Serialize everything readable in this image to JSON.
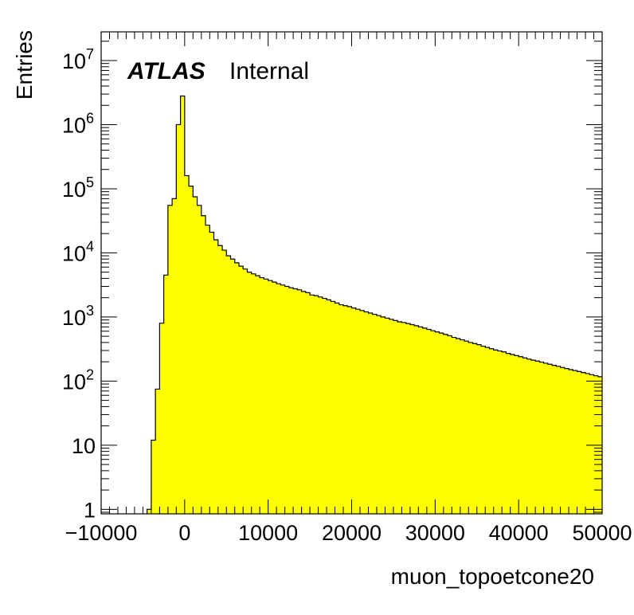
{
  "chart_data": {
    "type": "histogram",
    "xlabel": "muon_topoetcone20",
    "ylabel": "Entries",
    "label": {
      "bold": "ATLAS",
      "normal": "Internal"
    },
    "x_range": [
      -10000,
      50000
    ],
    "y_range": [
      0.85,
      28000000
    ],
    "y_scale": "log",
    "x_ticks": [
      -10000,
      0,
      10000,
      20000,
      30000,
      40000,
      50000
    ],
    "x_tick_labels": [
      "−10000",
      "0",
      "10000",
      "20000",
      "30000",
      "40000",
      "50000"
    ],
    "y_ticks": [
      {
        "value": 1,
        "base": "1",
        "exp": ""
      },
      {
        "value": 10,
        "base": "10",
        "exp": ""
      },
      {
        "value": 100,
        "base": "10",
        "exp": "2"
      },
      {
        "value": 1000,
        "base": "10",
        "exp": "3"
      },
      {
        "value": 10000,
        "base": "10",
        "exp": "4"
      },
      {
        "value": 100000,
        "base": "10",
        "exp": "5"
      },
      {
        "value": 1000000,
        "base": "10",
        "exp": "6"
      },
      {
        "value": 10000000,
        "base": "10",
        "exp": "7"
      }
    ],
    "fill_color": "#ffff00",
    "line_color": "#000000",
    "bin_width": 500,
    "bins": [
      [
        -4500,
        1
      ],
      [
        -4000,
        12
      ],
      [
        -3500,
        75
      ],
      [
        -3000,
        800
      ],
      [
        -2500,
        4500
      ],
      [
        -2000,
        55000
      ],
      [
        -1500,
        70000
      ],
      [
        -1000,
        1000000
      ],
      [
        -500,
        2800000
      ],
      [
        0,
        160000
      ],
      [
        500,
        110000
      ],
      [
        1000,
        75000
      ],
      [
        1500,
        55000
      ],
      [
        2000,
        38000
      ],
      [
        2500,
        27000
      ],
      [
        3000,
        21000
      ],
      [
        3500,
        16000
      ],
      [
        4000,
        13000
      ],
      [
        4500,
        11000
      ],
      [
        5000,
        9000
      ],
      [
        5500,
        8000
      ],
      [
        6000,
        7000
      ],
      [
        6500,
        6200
      ],
      [
        7000,
        5600
      ],
      [
        7500,
        5000
      ],
      [
        8000,
        4700
      ],
      [
        8500,
        4400
      ],
      [
        9000,
        4100
      ],
      [
        9500,
        3900
      ],
      [
        10000,
        3700
      ],
      [
        10500,
        3500
      ],
      [
        11000,
        3300
      ],
      [
        11500,
        3150
      ],
      [
        12000,
        3000
      ],
      [
        12500,
        2850
      ],
      [
        13000,
        2750
      ],
      [
        13500,
        2650
      ],
      [
        14000,
        2500
      ],
      [
        14500,
        2400
      ],
      [
        15000,
        2200
      ],
      [
        15500,
        2150
      ],
      [
        16000,
        2050
      ],
      [
        16500,
        1950
      ],
      [
        17000,
        1850
      ],
      [
        17500,
        1750
      ],
      [
        18000,
        1650
      ],
      [
        18500,
        1550
      ],
      [
        19000,
        1500
      ],
      [
        19500,
        1450
      ],
      [
        20000,
        1380
      ],
      [
        20500,
        1320
      ],
      [
        21000,
        1260
      ],
      [
        21500,
        1200
      ],
      [
        22000,
        1150
      ],
      [
        22500,
        1100
      ],
      [
        23000,
        1050
      ],
      [
        23500,
        1000
      ],
      [
        24000,
        960
      ],
      [
        24500,
        920
      ],
      [
        25000,
        880
      ],
      [
        25500,
        840
      ],
      [
        26000,
        820
      ],
      [
        26500,
        790
      ],
      [
        27000,
        760
      ],
      [
        27500,
        730
      ],
      [
        28000,
        700
      ],
      [
        28500,
        670
      ],
      [
        29000,
        640
      ],
      [
        29500,
        610
      ],
      [
        30000,
        585
      ],
      [
        30500,
        560
      ],
      [
        31000,
        535
      ],
      [
        31500,
        510
      ],
      [
        32000,
        480
      ],
      [
        32500,
        460
      ],
      [
        33000,
        440
      ],
      [
        33500,
        420
      ],
      [
        34000,
        400
      ],
      [
        34500,
        385
      ],
      [
        35000,
        370
      ],
      [
        35500,
        350
      ],
      [
        36000,
        335
      ],
      [
        36500,
        320
      ],
      [
        37000,
        305
      ],
      [
        37500,
        295
      ],
      [
        38000,
        285
      ],
      [
        38500,
        270
      ],
      [
        39000,
        260
      ],
      [
        39500,
        250
      ],
      [
        40000,
        240
      ],
      [
        40500,
        230
      ],
      [
        41000,
        220
      ],
      [
        41500,
        212
      ],
      [
        42000,
        205
      ],
      [
        42500,
        198
      ],
      [
        43000,
        190
      ],
      [
        43500,
        183
      ],
      [
        44000,
        176
      ],
      [
        44500,
        170
      ],
      [
        45000,
        163
      ],
      [
        45500,
        157
      ],
      [
        46000,
        151
      ],
      [
        46500,
        146
      ],
      [
        47000,
        141
      ],
      [
        47500,
        136
      ],
      [
        48000,
        131
      ],
      [
        48500,
        126
      ],
      [
        49000,
        121
      ],
      [
        49500,
        117
      ]
    ]
  }
}
